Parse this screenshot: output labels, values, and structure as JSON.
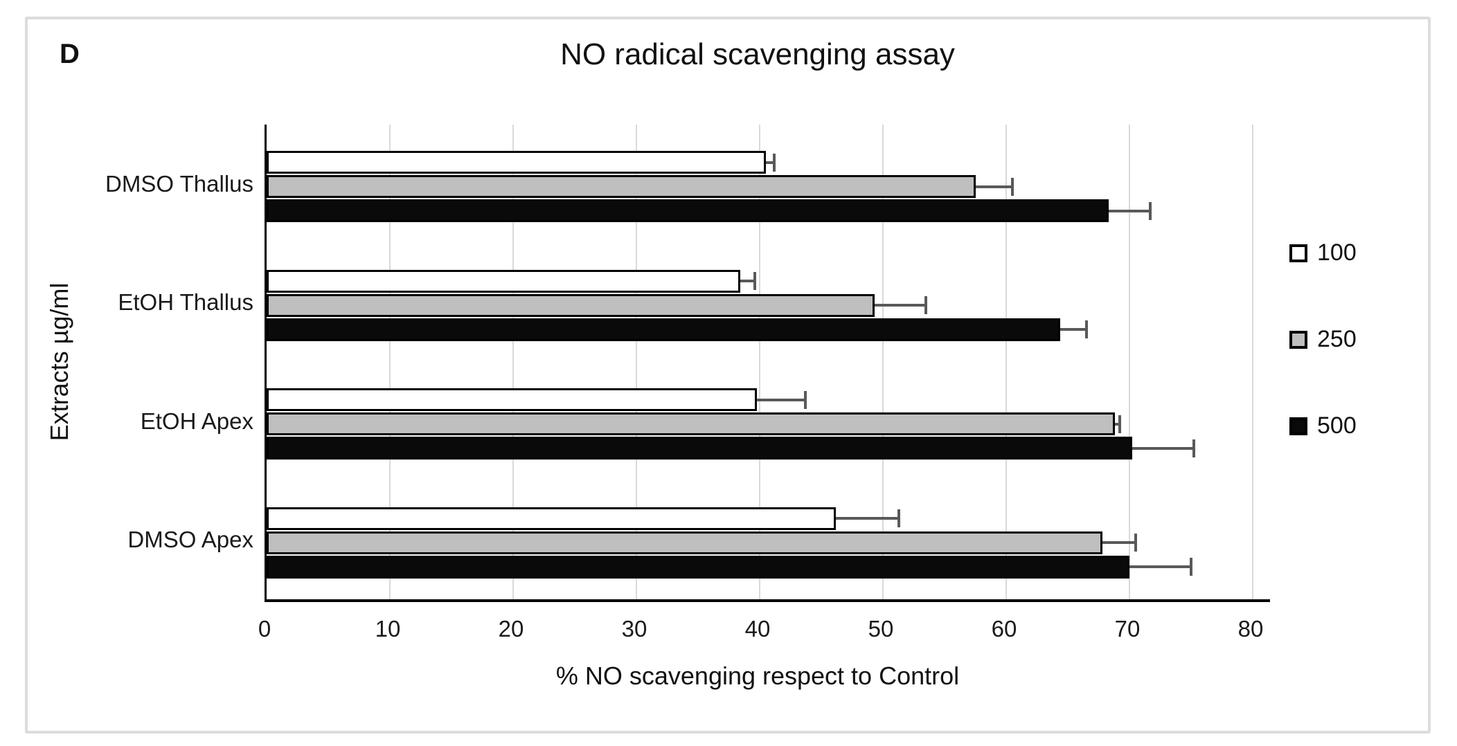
{
  "panel": {
    "label": "D"
  },
  "chart_data": {
    "type": "bar",
    "orientation": "horizontal",
    "title": "NO radical scavenging assay",
    "xlabel": "% NO scavenging respect to Control",
    "ylabel": "Extracts µg/ml",
    "xlim": [
      0,
      80
    ],
    "xticks": [
      0,
      10,
      20,
      30,
      40,
      50,
      60,
      70,
      80
    ],
    "grid": true,
    "legend_position": "right",
    "categories": [
      "DMSO Thallus",
      "EtOH Thallus",
      "EtOH Apex",
      "DMSO Apex"
    ],
    "series": [
      {
        "name": "100",
        "color": "#FFFFFF",
        "values": [
          40.5,
          38.4,
          39.8,
          46.2
        ],
        "errors": [
          0.7,
          1.2,
          3.9,
          5.1
        ]
      },
      {
        "name": "250",
        "color": "#BFBFBF",
        "values": [
          57.5,
          49.3,
          68.8,
          67.8
        ],
        "errors": [
          3.0,
          4.2,
          0.4,
          2.7
        ]
      },
      {
        "name": "500",
        "color": "#0A0A0A",
        "values": [
          68.3,
          64.4,
          70.2,
          70.0
        ],
        "errors": [
          3.4,
          2.1,
          5.0,
          5.0
        ]
      }
    ],
    "colors": {
      "error_bar": "#595959",
      "bar_border": "#000000",
      "gridline": "#D9D9D9",
      "axis": "#000000",
      "panel_border": "#DCDCDC"
    }
  }
}
